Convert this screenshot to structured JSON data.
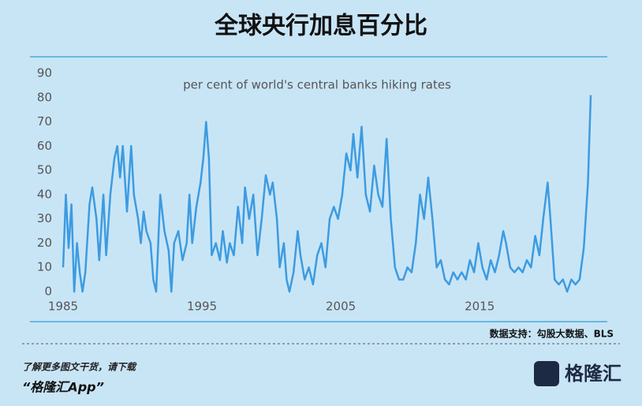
{
  "chart_data": {
    "type": "line",
    "title": "全球央行加息百分比",
    "subtitle": "per cent of world's central banks hiking rates",
    "x": [
      1985.0,
      1985.2,
      1985.4,
      1985.6,
      1985.8,
      1986.0,
      1986.2,
      1986.4,
      1986.6,
      1986.9,
      1987.1,
      1987.4,
      1987.6,
      1987.9,
      1988.1,
      1988.4,
      1988.7,
      1988.9,
      1989.1,
      1989.3,
      1989.6,
      1989.9,
      1990.1,
      1990.4,
      1990.6,
      1990.8,
      1991.0,
      1991.3,
      1991.5,
      1991.7,
      1992.0,
      1992.3,
      1992.6,
      1992.8,
      1993.0,
      1993.3,
      1993.6,
      1993.9,
      1994.1,
      1994.3,
      1994.6,
      1994.9,
      1995.1,
      1995.3,
      1995.5,
      1995.7,
      1996.0,
      1996.3,
      1996.5,
      1996.8,
      1997.0,
      1997.3,
      1997.6,
      1997.9,
      1998.1,
      1998.4,
      1998.7,
      1999.0,
      1999.3,
      1999.6,
      1999.9,
      2000.1,
      2000.4,
      2000.6,
      2000.9,
      2001.1,
      2001.3,
      2001.6,
      2001.9,
      2002.1,
      2002.4,
      2002.7,
      2003.0,
      2003.3,
      2003.6,
      2003.9,
      2004.2,
      2004.5,
      2004.8,
      2005.1,
      2005.4,
      2005.7,
      2005.9,
      2006.2,
      2006.5,
      2006.8,
      2007.1,
      2007.4,
      2007.7,
      2008.0,
      2008.3,
      2008.6,
      2008.9,
      2009.2,
      2009.5,
      2009.8,
      2010.1,
      2010.4,
      2010.7,
      2011.0,
      2011.3,
      2011.6,
      2011.9,
      2012.2,
      2012.5,
      2012.8,
      2013.1,
      2013.4,
      2013.7,
      2014.0,
      2014.3,
      2014.6,
      2014.9,
      2015.2,
      2015.5,
      2015.8,
      2016.1,
      2016.4,
      2016.7,
      2016.9,
      2017.2,
      2017.5,
      2017.8,
      2018.1,
      2018.4,
      2018.7,
      2019.0,
      2019.3,
      2019.6,
      2019.9,
      2020.1,
      2020.4,
      2020.7,
      2021.0,
      2021.3,
      2021.6,
      2021.9,
      2022.2,
      2022.5,
      2022.8,
      2023.0
    ],
    "series": [
      {
        "color": "#3d9be0",
        "values": [
          10,
          40,
          18,
          36,
          0,
          20,
          8,
          0,
          8,
          36,
          43,
          30,
          13,
          40,
          15,
          40,
          55,
          60,
          47,
          60,
          33,
          60,
          40,
          30,
          20,
          33,
          25,
          20,
          5,
          0,
          40,
          25,
          17,
          0,
          20,
          25,
          13,
          20,
          40,
          20,
          35,
          45,
          55,
          70,
          55,
          15,
          20,
          13,
          25,
          12,
          20,
          15,
          35,
          20,
          43,
          30,
          40,
          15,
          30,
          48,
          40,
          45,
          30,
          10,
          20,
          5,
          0,
          8,
          25,
          15,
          5,
          10,
          3,
          15,
          20,
          10,
          30,
          35,
          30,
          40,
          57,
          50,
          65,
          47,
          68,
          40,
          33,
          52,
          40,
          35,
          63,
          30,
          10,
          5,
          5,
          10,
          8,
          20,
          40,
          30,
          47,
          30,
          10,
          13,
          5,
          3,
          8,
          5,
          8,
          5,
          13,
          8,
          20,
          10,
          5,
          13,
          8,
          15,
          25,
          20,
          10,
          8,
          10,
          8,
          13,
          10,
          23,
          15,
          31,
          45,
          30,
          5,
          3,
          5,
          0,
          5,
          3,
          5,
          18,
          45,
          81
        ]
      }
    ],
    "xlim": [
      1985,
      2023
    ],
    "xticks": [
      1985,
      1995,
      2005,
      2015
    ],
    "ylim": [
      0,
      90
    ],
    "yticks": [
      0,
      10,
      20,
      30,
      40,
      50,
      60,
      70,
      80,
      90
    ],
    "source": "数据支持：勾股大数据、BLS",
    "footer_note": "了解更多图文干货，请下载",
    "footer_app": "“格隆汇App”",
    "logo": "格隆汇"
  }
}
